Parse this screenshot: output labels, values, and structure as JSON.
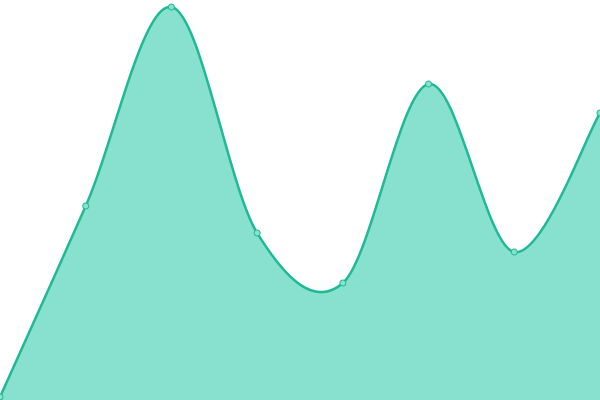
{
  "chart_data": {
    "type": "area",
    "categories": [
      null,
      null,
      null,
      null,
      null,
      null,
      null,
      null
    ],
    "values": [
      3,
      194,
      393,
      167,
      117,
      316,
      148,
      287
    ],
    "color": "#1fb994",
    "fill": "#88e0cf",
    "ylim": [
      0,
      400
    ]
  }
}
